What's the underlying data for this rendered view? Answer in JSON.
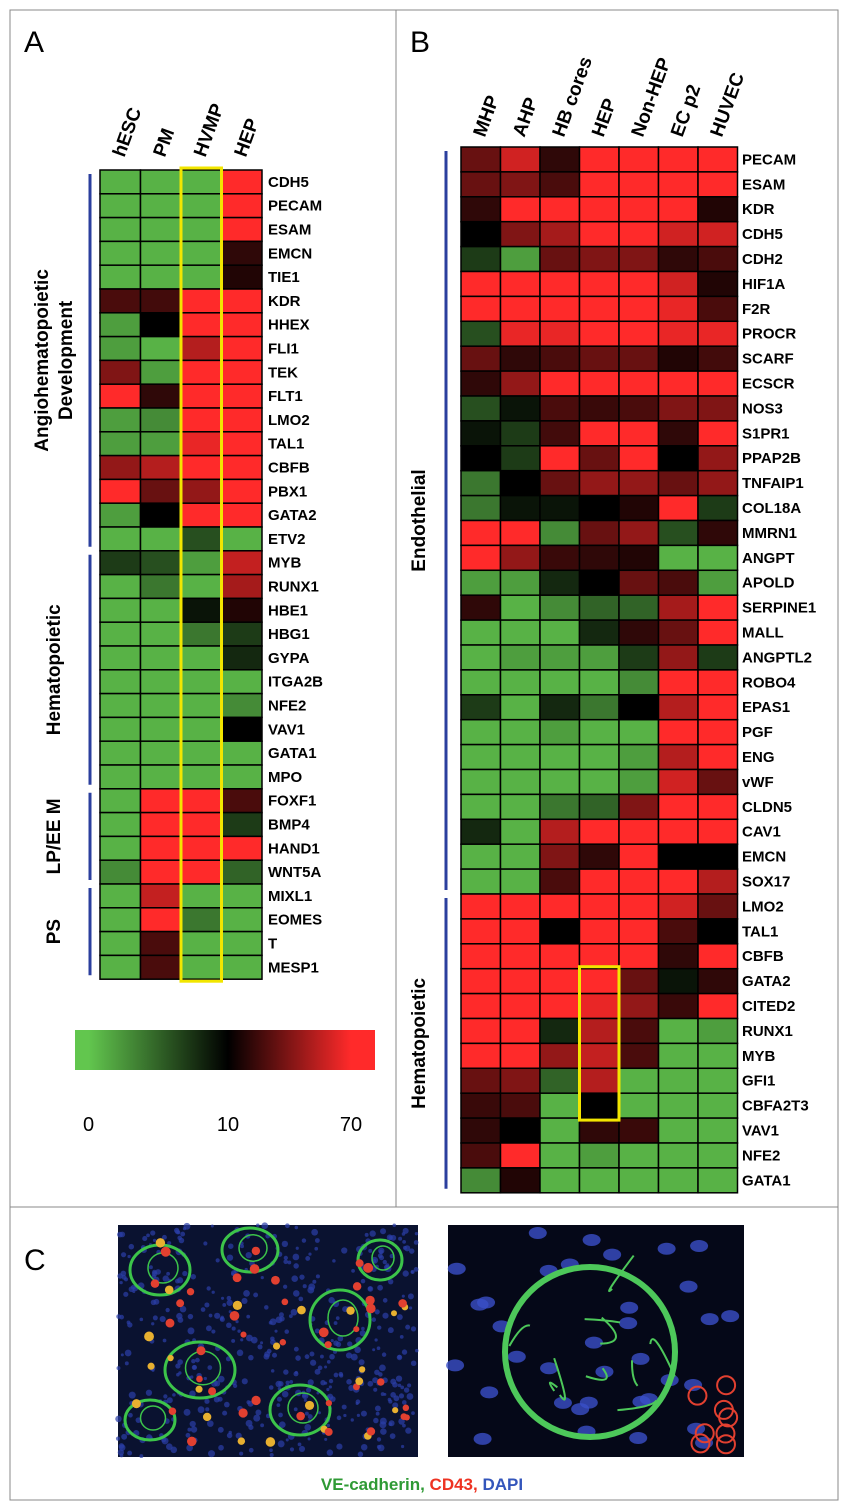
{
  "chart_data": [
    {
      "type": "heatmap",
      "panel": "A",
      "columns": [
        "hESC",
        "PM",
        "HVMP",
        "HEP"
      ],
      "groups": [
        {
          "label": [
            "Angiohematopoietic",
            "Development"
          ],
          "rows": [
            "CDH5",
            "PECAM",
            "ESAM",
            "EMCN",
            "TIE1",
            "KDR",
            "HHEX",
            "FLI1",
            "TEK",
            "FLT1",
            "LMO2",
            "TAL1",
            "CBFB",
            "PBX1",
            "GATA2",
            "ETV2"
          ],
          "values": [
            [
              1,
              1,
              1,
              70
            ],
            [
              1,
              1,
              1,
              70
            ],
            [
              1,
              1,
              1,
              70
            ],
            [
              1,
              1,
              1,
              12
            ],
            [
              1,
              1,
              1,
              11
            ],
            [
              15,
              14,
              70,
              70
            ],
            [
              2,
              10,
              70,
              70
            ],
            [
              2,
              1,
              40,
              70
            ],
            [
              25,
              2,
              70,
              70
            ],
            [
              70,
              12,
              70,
              70
            ],
            [
              2,
              3,
              70,
              70
            ],
            [
              2,
              2,
              60,
              70
            ],
            [
              30,
              40,
              70,
              70
            ],
            [
              70,
              20,
              30,
              70
            ],
            [
              2,
              10,
              70,
              70
            ],
            [
              1,
              1,
              6,
              1
            ]
          ]
        },
        {
          "label": [
            "Hematopoietic"
          ],
          "rows": [
            "MYB",
            "RUNX1",
            "HBE1",
            "HBG1",
            "GYPA",
            "ITGA2B",
            "NFE2",
            "VAV1",
            "GATA1",
            "MPO"
          ],
          "values": [
            [
              7,
              6,
              2,
              45
            ],
            [
              1,
              4,
              1,
              35
            ],
            [
              1,
              1,
              9,
              11
            ],
            [
              1,
              1,
              4,
              7
            ],
            [
              1,
              1,
              1,
              8
            ],
            [
              1,
              1,
              1,
              1
            ],
            [
              1,
              1,
              1,
              3
            ],
            [
              1,
              1,
              1,
              10
            ],
            [
              1,
              1,
              1,
              1
            ],
            [
              1,
              1,
              1,
              1
            ]
          ]
        },
        {
          "label": [
            "LP/EE M"
          ],
          "rows": [
            "FOXF1",
            "BMP4",
            "HAND1",
            "WNT5A"
          ],
          "values": [
            [
              1,
              70,
              70,
              15
            ],
            [
              1,
              70,
              70,
              7
            ],
            [
              1,
              70,
              70,
              70
            ],
            [
              3,
              70,
              70,
              5
            ]
          ]
        },
        {
          "label": [
            "PS"
          ],
          "rows": [
            "MIXL1",
            "EOMES",
            "T",
            "MESP1"
          ],
          "values": [
            [
              1,
              45,
              1,
              1
            ],
            [
              1,
              70,
              4,
              1
            ],
            [
              1,
              15,
              1,
              1
            ],
            [
              1,
              15,
              1,
              1
            ]
          ]
        }
      ]
    },
    {
      "type": "heatmap",
      "panel": "B",
      "columns": [
        "MHP",
        "AHP",
        "HB cores",
        "HEP",
        "Non-HEP",
        "EC p2",
        "HUVEC"
      ],
      "groups": [
        {
          "label": [
            "Endothelial"
          ],
          "rows": [
            "PECAM",
            "ESAM",
            "KDR",
            "CDH5",
            "CDH2",
            "HIF1A",
            "F2R",
            "PROCR",
            "SCARF",
            "ECSCR",
            "NOS3",
            "S1PR1",
            "PPAP2B",
            "TNFAIP1",
            "COL18A",
            "MMRN1",
            "ANGPT",
            "APOLD",
            "SERPINE1",
            "MALL",
            "ANGPTL2",
            "ROBO4",
            "EPAS1",
            "PGF",
            "ENG",
            "vWF",
            "CLDN5",
            "CAV1",
            "EMCN",
            "SOX17"
          ],
          "values": [
            [
              20,
              50,
              12,
              70,
              70,
              70,
              70
            ],
            [
              20,
              25,
              15,
              70,
              70,
              70,
              70
            ],
            [
              12,
              70,
              70,
              70,
              70,
              70,
              11
            ],
            [
              10,
              25,
              35,
              70,
              70,
              50,
              50
            ],
            [
              7,
              2,
              20,
              25,
              25,
              12,
              15
            ],
            [
              70,
              70,
              70,
              70,
              70,
              50,
              11
            ],
            [
              70,
              70,
              70,
              70,
              70,
              60,
              15
            ],
            [
              6,
              60,
              60,
              70,
              70,
              60,
              60
            ],
            [
              20,
              12,
              15,
              20,
              20,
              11,
              14
            ],
            [
              12,
              30,
              70,
              70,
              70,
              70,
              70
            ],
            [
              6,
              9,
              15,
              13,
              15,
              25,
              25
            ],
            [
              9,
              7,
              14,
              70,
              70,
              12,
              70
            ],
            [
              10,
              7,
              70,
              20,
              70,
              10,
              30
            ],
            [
              4,
              10,
              20,
              30,
              30,
              20,
              30
            ],
            [
              4,
              9,
              9,
              10,
              11,
              70,
              7
            ],
            [
              70,
              70,
              3,
              20,
              30,
              6,
              12
            ],
            [
              70,
              30,
              13,
              12,
              11,
              1,
              1
            ],
            [
              2,
              2,
              8,
              10,
              20,
              15,
              2
            ],
            [
              12,
              1,
              3,
              5,
              5,
              35,
              70
            ],
            [
              1,
              1,
              1,
              8,
              12,
              20,
              70
            ],
            [
              1,
              2,
              2,
              2,
              7,
              30,
              7
            ],
            [
              1,
              1,
              1,
              1,
              3,
              70,
              70
            ],
            [
              7,
              1,
              8,
              4,
              10,
              40,
              70
            ],
            [
              1,
              1,
              2,
              1,
              1,
              70,
              70
            ],
            [
              1,
              1,
              1,
              1,
              2,
              40,
              70
            ],
            [
              1,
              1,
              1,
              1,
              2,
              50,
              20
            ],
            [
              1,
              1,
              4,
              5,
              25,
              70,
              70
            ],
            [
              8,
              1,
              40,
              70,
              70,
              70,
              70
            ],
            [
              1,
              1,
              25,
              12,
              70,
              10,
              10
            ],
            [
              1,
              1,
              15,
              70,
              70,
              70,
              40
            ]
          ]
        },
        {
          "label": [
            "Hematopoietic"
          ],
          "rows": [
            "LMO2",
            "TAL1",
            "CBFB",
            "GATA2",
            "CITED2",
            "RUNX1",
            "MYB",
            "GFI1",
            "CBFA2T3",
            "VAV1",
            "NFE2",
            "GATA1"
          ],
          "values": [
            [
              70,
              70,
              70,
              70,
              70,
              50,
              20
            ],
            [
              70,
              70,
              10,
              70,
              70,
              15,
              10
            ],
            [
              70,
              70,
              70,
              70,
              70,
              12,
              70
            ],
            [
              70,
              70,
              70,
              70,
              20,
              9,
              12
            ],
            [
              70,
              70,
              70,
              60,
              30,
              13,
              70
            ],
            [
              70,
              70,
              8,
              40,
              15,
              1,
              2
            ],
            [
              70,
              70,
              30,
              45,
              15,
              1,
              1
            ],
            [
              20,
              25,
              5,
              40,
              1,
              1,
              1
            ],
            [
              13,
              15,
              1,
              10,
              1,
              1,
              1
            ],
            [
              12,
              10,
              1,
              12,
              13,
              1,
              1
            ],
            [
              15,
              70,
              1,
              2,
              1,
              1,
              1
            ],
            [
              3,
              11,
              1,
              1,
              1,
              1,
              1
            ]
          ]
        }
      ]
    }
  ],
  "colorbar": {
    "ticks": [
      0,
      10,
      70
    ],
    "colors": [
      "#62c64e",
      "#000000",
      "#ff2a2a"
    ]
  },
  "panel_c": {
    "label": "C",
    "caption": [
      {
        "text": "VE-cadherin",
        "color": "#2f9a35"
      },
      {
        "text": ", ",
        "color": "#2f9a35"
      },
      {
        "text": "CD43",
        "color": "#ee3322"
      },
      {
        "text": ", ",
        "color": "#ee3322"
      },
      {
        "text": "DAPI",
        "color": "#3355bb"
      }
    ]
  }
}
